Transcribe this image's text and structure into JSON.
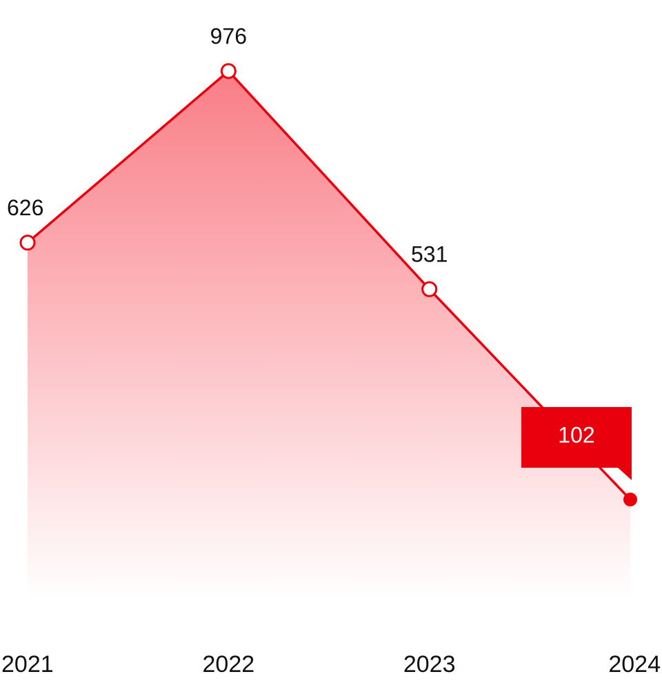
{
  "chart_data": {
    "type": "line",
    "categories": [
      "2021",
      "2022",
      "2023",
      "2024"
    ],
    "series": [
      {
        "color": "#e8000d",
        "values": [
          626,
          976,
          531,
          102
        ]
      }
    ]
  }
}
